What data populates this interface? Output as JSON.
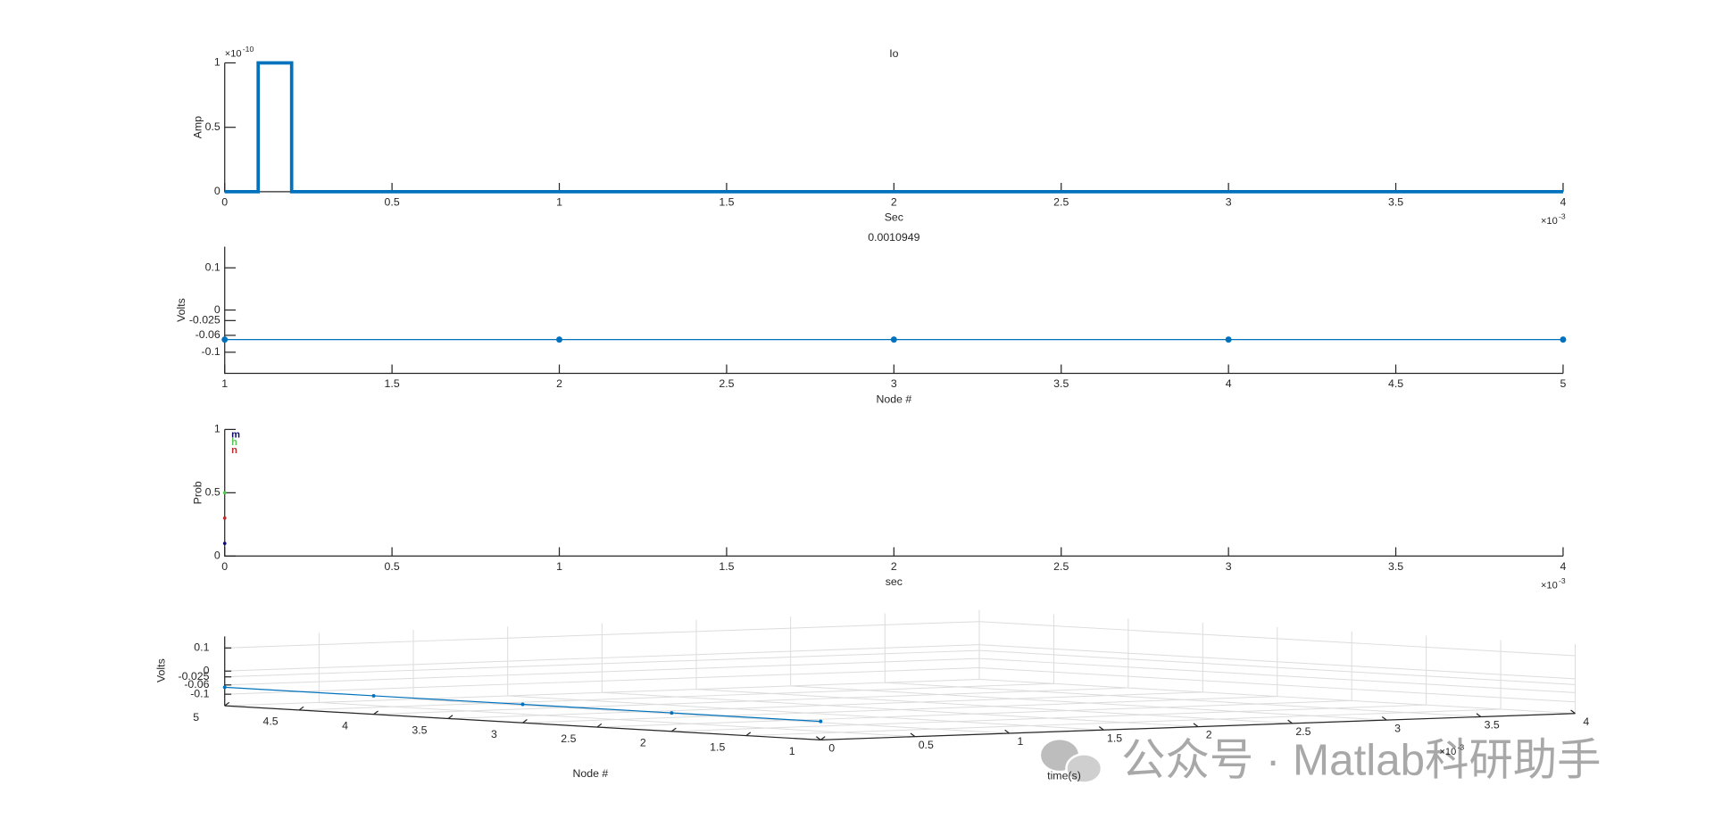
{
  "chart_data": [
    {
      "type": "line",
      "title": "Io",
      "x_label": "Sec",
      "y_label": "Amp",
      "xlim": [
        0,
        0.004
      ],
      "ylim": [
        0,
        1e-10
      ],
      "xticks": [
        0,
        {
          "value": 0.0005,
          "label": "0.5"
        },
        {
          "value": 0.001,
          "label": "1"
        },
        {
          "value": 0.0015,
          "label": "1.5"
        },
        {
          "value": 0.002,
          "label": "2"
        },
        {
          "value": 0.0025,
          "label": "2.5"
        },
        {
          "value": 0.003,
          "label": "3"
        },
        {
          "value": 0.0035,
          "label": "3.5"
        },
        {
          "value": 0.004,
          "label": "4"
        }
      ],
      "x_multiplier": {
        "base": "×10",
        "power": "-3"
      },
      "yticks": [
        0,
        {
          "value": 5e-11,
          "label": "0.5"
        },
        {
          "value": 1e-10,
          "label": "1"
        }
      ],
      "y_multiplier": {
        "base": "×10",
        "power": "-10"
      },
      "x": [
        0,
        0.0001,
        0.0001,
        0.0002,
        0.0002,
        0.004
      ],
      "series": [
        {
          "color": "#0072bd",
          "values": [
            0,
            0,
            1e-10,
            1e-10,
            0,
            0
          ]
        }
      ]
    },
    {
      "type": "line",
      "title": "0.0010949",
      "x_label": "Node #",
      "y_label": "Volts",
      "xlim": [
        1,
        5
      ],
      "ylim": [
        -0.15,
        0.15
      ],
      "xticks": [
        1,
        1.5,
        2,
        2.5,
        3,
        3.5,
        4,
        4.5,
        5
      ],
      "yticks": [
        -0.1,
        -0.06,
        -0.025,
        0,
        0.1
      ],
      "x": [
        1,
        2,
        3,
        4,
        5
      ],
      "series": [
        {
          "color": "#0072bd",
          "markers": true,
          "values": [
            -0.07,
            -0.07,
            -0.07,
            -0.07,
            -0.07
          ]
        }
      ]
    },
    {
      "type": "scatter",
      "x_label": "sec",
      "y_label": "Prob",
      "xlim": [
        0,
        0.004
      ],
      "ylim": [
        0,
        1
      ],
      "xticks": [
        0,
        {
          "value": 0.0005,
          "label": "0.5"
        },
        {
          "value": 0.001,
          "label": "1"
        },
        {
          "value": 0.0015,
          "label": "1.5"
        },
        {
          "value": 0.002,
          "label": "2"
        },
        {
          "value": 0.0025,
          "label": "2.5"
        },
        {
          "value": 0.003,
          "label": "3"
        },
        {
          "value": 0.0035,
          "label": "3.5"
        },
        {
          "value": 0.004,
          "label": "4"
        }
      ],
      "x_multiplier": {
        "base": "×10",
        "power": "-3"
      },
      "yticks": [
        0,
        0.5,
        1
      ],
      "legend": "upper left",
      "series": [
        {
          "name": "m",
          "color": "#0b0b6e",
          "x": [
            0
          ],
          "values": [
            0.1
          ]
        },
        {
          "name": "h",
          "color": "#55c555",
          "x": [
            0
          ],
          "values": [
            0.5
          ]
        },
        {
          "name": "n",
          "color": "#b52d2d",
          "x": [
            0
          ],
          "values": [
            0.3
          ]
        }
      ]
    },
    {
      "type": "line3d",
      "x_label": "time(s)",
      "y_label": "Node #",
      "z_label": "Volts",
      "xlim": [
        0,
        0.004
      ],
      "ylim": [
        1,
        5
      ],
      "zlim": [
        -0.15,
        0.15
      ],
      "xticks": [
        0,
        {
          "value": 0.0005,
          "label": "0.5"
        },
        {
          "value": 0.001,
          "label": "1"
        },
        {
          "value": 0.0015,
          "label": "1.5"
        },
        {
          "value": 0.002,
          "label": "2"
        },
        {
          "value": 0.0025,
          "label": "2.5"
        },
        {
          "value": 0.003,
          "label": "3"
        },
        {
          "value": 0.0035,
          "label": "3.5"
        },
        {
          "value": 0.004,
          "label": "4"
        }
      ],
      "x_multiplier": {
        "base": "×10",
        "power": "-3"
      },
      "yticks": [
        1,
        1.5,
        2,
        2.5,
        3,
        3.5,
        4,
        4.5,
        5
      ],
      "zticks": [
        -0.1,
        -0.06,
        -0.025,
        0,
        0.1
      ],
      "grid": true,
      "series": [
        {
          "color": "#0072bd",
          "x": [
            0,
            0,
            0,
            0,
            0
          ],
          "y": [
            1,
            2,
            3,
            4,
            5
          ],
          "values": [
            -0.07,
            -0.07,
            -0.07,
            -0.07,
            -0.07
          ]
        }
      ]
    }
  ],
  "watermark": "公众号 · Matlab科研助手"
}
